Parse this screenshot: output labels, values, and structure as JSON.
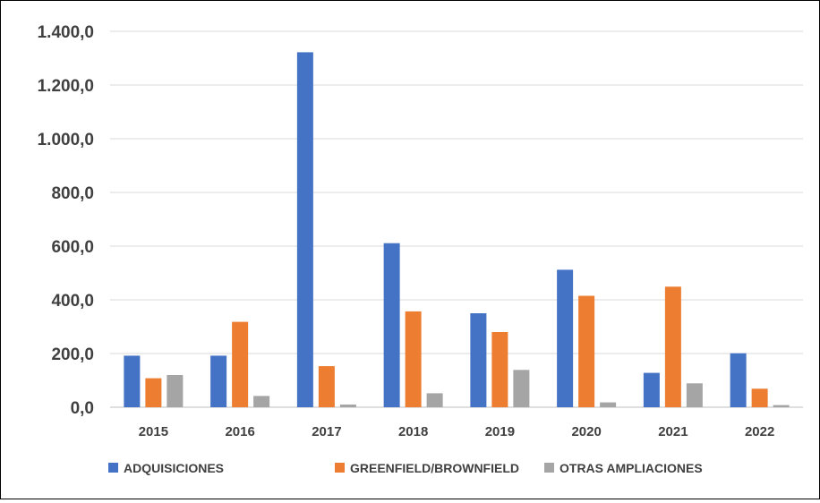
{
  "chart_data": {
    "type": "bar",
    "categories": [
      "2015",
      "2016",
      "2017",
      "2018",
      "2019",
      "2020",
      "2021",
      "2022"
    ],
    "series": [
      {
        "name": "ADQUISICIONES",
        "color": "#4472C4",
        "values": [
          192,
          192,
          1322,
          611,
          350,
          512,
          128,
          201
        ]
      },
      {
        "name": "GREENFIELD/BROWNFIELD",
        "color": "#ED7D31",
        "values": [
          108,
          318,
          153,
          357,
          280,
          415,
          449,
          69
        ]
      },
      {
        "name": "OTRAS AMPLIACIONES",
        "color": "#A5A5A5",
        "values": [
          120,
          42,
          10,
          52,
          139,
          18,
          89,
          8
        ]
      }
    ],
    "yticks": [
      "0,0",
      "200,0",
      "400,0",
      "600,0",
      "800,0",
      "1.000,0",
      "1.200,0",
      "1.400,0"
    ],
    "ylim": [
      0,
      1400
    ],
    "grid": true,
    "legend": "bottom"
  }
}
